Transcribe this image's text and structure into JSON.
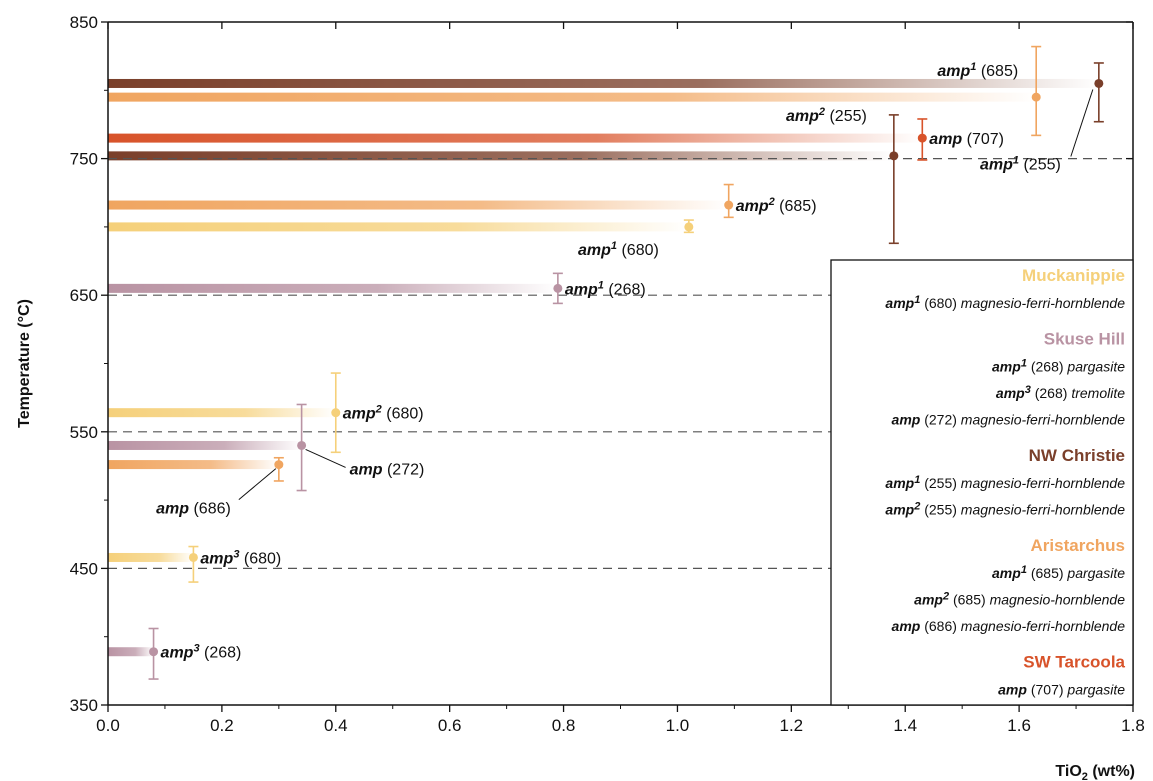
{
  "chart_data": {
    "type": "scatter",
    "xlabel_main": "TiO",
    "xlabel_sub": "2",
    "xlabel_rest": " (wt%)",
    "ylabel": "Temperature (°C)",
    "xlim": [
      0.0,
      1.8
    ],
    "ylim": [
      350,
      850
    ],
    "x_ticks": [
      "0.0",
      "0.2",
      "0.4",
      "0.6",
      "0.8",
      "1.0",
      "1.2",
      "1.4",
      "1.6",
      "1.8"
    ],
    "y_ticks": [
      "350",
      "450",
      "550",
      "650",
      "750",
      "850"
    ],
    "reference_lines": [
      450,
      550,
      650,
      750
    ],
    "colors": {
      "Muckanippie": "#f5d07a",
      "Skuse Hill": "#b993a3",
      "NW Christie": "#7a3f2a",
      "Aristarchus": "#f0a560",
      "SW Tarcoola": "#d8532a"
    },
    "points": [
      {
        "mineral": "amp",
        "sup": "1",
        "sample": "(685)",
        "group": "Aristarchus",
        "x": 1.63,
        "y": 795,
        "err_low": 767,
        "err_high": 832
      },
      {
        "mineral": "amp",
        "sup": "1",
        "sample": "(255)",
        "group": "NW Christie",
        "x": 1.74,
        "y": 805,
        "err_low": 777,
        "err_high": 820
      },
      {
        "mineral": "amp",
        "sup": "2",
        "sample": "(255)",
        "group": "NW Christie",
        "x": 1.38,
        "y": 752,
        "err_low": 688,
        "err_high": 782
      },
      {
        "mineral": "amp",
        "sup": "",
        "sample": "(707)",
        "group": "SW Tarcoola",
        "x": 1.43,
        "y": 765,
        "err_low": 749,
        "err_high": 779
      },
      {
        "mineral": "amp",
        "sup": "2",
        "sample": "(685)",
        "group": "Aristarchus",
        "x": 1.09,
        "y": 716,
        "err_low": 707,
        "err_high": 731
      },
      {
        "mineral": "amp",
        "sup": "1",
        "sample": "(680)",
        "group": "Muckanippie",
        "x": 1.02,
        "y": 700,
        "err_low": 696,
        "err_high": 705
      },
      {
        "mineral": "amp",
        "sup": "1",
        "sample": "(268)",
        "group": "Skuse Hill",
        "x": 0.79,
        "y": 655,
        "err_low": 644,
        "err_high": 666
      },
      {
        "mineral": "amp",
        "sup": "2",
        "sample": "(680)",
        "group": "Muckanippie",
        "x": 0.4,
        "y": 564,
        "err_low": 535,
        "err_high": 593
      },
      {
        "mineral": "amp",
        "sup": "",
        "sample": "(272)",
        "group": "Skuse Hill",
        "x": 0.34,
        "y": 540,
        "err_low": 507,
        "err_high": 570
      },
      {
        "mineral": "amp",
        "sup": "",
        "sample": "(686)",
        "group": "Aristarchus",
        "x": 0.3,
        "y": 526,
        "err_low": 514,
        "err_high": 531
      },
      {
        "mineral": "amp",
        "sup": "3",
        "sample": "(680)",
        "group": "Muckanippie",
        "x": 0.15,
        "y": 458,
        "err_low": 440,
        "err_high": 466
      },
      {
        "mineral": "amp",
        "sup": "3",
        "sample": "(268)",
        "group": "Skuse Hill",
        "x": 0.08,
        "y": 389,
        "err_low": 369,
        "err_high": 406
      }
    ],
    "legend": [
      {
        "group": "Muckanippie",
        "entries": [
          {
            "mineral": "amp",
            "sup": "1",
            "sample": "(680)",
            "name": "magnesio-ferri-hornblende"
          }
        ]
      },
      {
        "group": "Skuse Hill",
        "entries": [
          {
            "mineral": "amp",
            "sup": "1",
            "sample": "(268)",
            "name": "pargasite"
          },
          {
            "mineral": "amp",
            "sup": "3",
            "sample": "(268)",
            "name": "tremolite"
          },
          {
            "mineral": "amp",
            "sup": "",
            "sample": "(272)",
            "name": "magnesio-ferri-hornblende"
          }
        ]
      },
      {
        "group": "NW Christie",
        "entries": [
          {
            "mineral": "amp",
            "sup": "1",
            "sample": "(255)",
            "name": "magnesio-ferri-hornblende"
          },
          {
            "mineral": "amp",
            "sup": "2",
            "sample": "(255)",
            "name": "magnesio-ferri-hornblende"
          }
        ]
      },
      {
        "group": "Aristarchus",
        "entries": [
          {
            "mineral": "amp",
            "sup": "1",
            "sample": "(685)",
            "name": "pargasite"
          },
          {
            "mineral": "amp",
            "sup": "2",
            "sample": "(685)",
            "name": "magnesio-hornblende"
          },
          {
            "mineral": "amp",
            "sup": "",
            "sample": "(686)",
            "name": "magnesio-ferri-hornblende"
          }
        ]
      },
      {
        "group": "SW Tarcoola",
        "entries": [
          {
            "mineral": "amp",
            "sup": "",
            "sample": "(707)",
            "name": "pargasite"
          }
        ]
      }
    ],
    "legend_placement": "bottom-right"
  }
}
